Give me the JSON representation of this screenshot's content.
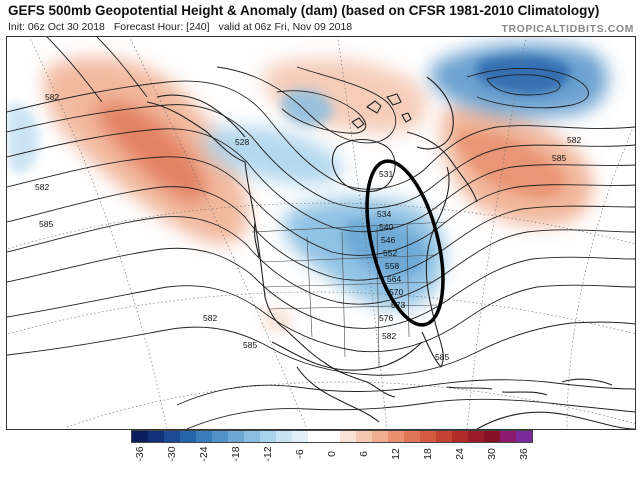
{
  "header": {
    "title": "GEFS 500mb Geopotential Height & Anomaly (dam) (based on CFSR 1981-2010 Climatology)",
    "init": "Init: 06z Oct 30 2018",
    "forecast_hour": "Forecast Hour: [240]",
    "valid": "valid at 06z Fri, Nov 09 2018",
    "brand": "TROPICALTIDBITS.COM"
  },
  "map": {
    "contour_labels": [
      "582",
      "582",
      "585",
      "528",
      "582",
      "585",
      "582",
      "585",
      "582",
      "585",
      "531",
      "534",
      "540",
      "546",
      "552",
      "558",
      "564",
      "570",
      "573",
      "576"
    ],
    "annotation": "black ellipse highlighting eastern US trough"
  },
  "colorbar": {
    "ticks": [
      "-36",
      "-30",
      "-24",
      "-18",
      "-12",
      "-6",
      "0",
      "6",
      "12",
      "18",
      "24",
      "30",
      "36"
    ],
    "colors": [
      "#0b1d5c",
      "#13307a",
      "#1b4a96",
      "#2563aa",
      "#3a7cbc",
      "#5292c9",
      "#6ca8d6",
      "#8bbfe2",
      "#a9d2ec",
      "#c6e2f3",
      "#e1eff8",
      "#ffffff",
      "#ffffff",
      "#f9e2d6",
      "#f5c8b2",
      "#f0ad8f",
      "#e9916f",
      "#e07555",
      "#d45b40",
      "#c44232",
      "#b12b29",
      "#9c1a27",
      "#861026",
      "#8e1a6e",
      "#7a2a9b"
    ]
  }
}
